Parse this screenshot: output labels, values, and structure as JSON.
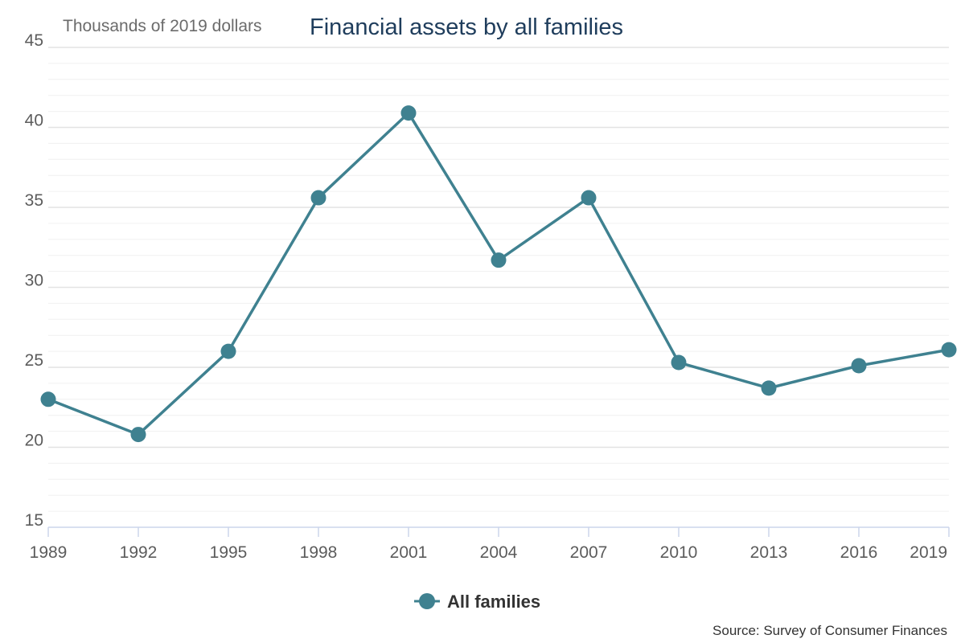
{
  "colors": {
    "series": "#3f8190",
    "major_grid": "#e3e3e3",
    "minor_grid": "#f0f0f0",
    "axis": "#ccd6eb",
    "title": "#1f3d5c"
  },
  "chart_data": {
    "type": "line",
    "title": "Financial assets by all families",
    "unit_label": "Thousands of 2019 dollars",
    "xlabel": "",
    "ylabel": "",
    "categories": [
      "1989",
      "1992",
      "1995",
      "1998",
      "2001",
      "2004",
      "2007",
      "2010",
      "2013",
      "2016",
      "2019"
    ],
    "series": [
      {
        "name": "All families",
        "values": [
          23.0,
          20.8,
          26.0,
          35.6,
          40.9,
          31.7,
          35.6,
          25.3,
          23.7,
          25.1,
          26.1
        ]
      }
    ],
    "ylim": [
      15,
      45
    ],
    "yticks": [
      "15",
      "20",
      "25",
      "30",
      "35",
      "40",
      "45"
    ],
    "minor_step": 1,
    "grid": true,
    "legend_position": "bottom-center",
    "markers": true
  },
  "footer": {
    "source": "Source: Survey of Consumer Finances"
  }
}
